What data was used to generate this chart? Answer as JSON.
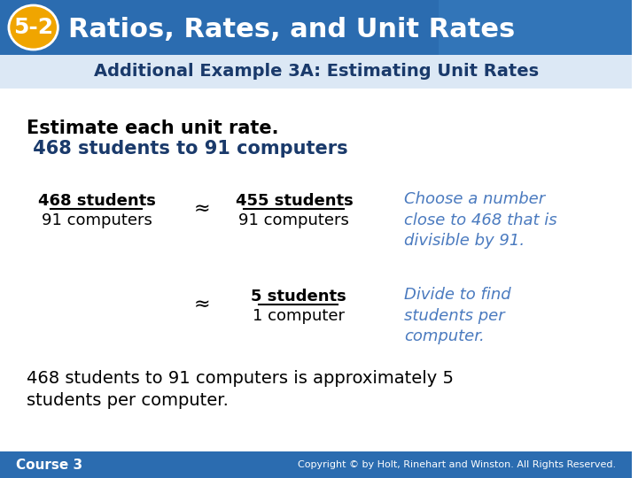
{
  "header_bg_color": "#2b6cb0",
  "header_text": "Ratios, Rates, and Unit Rates",
  "header_badge_text": "5-2",
  "header_badge_bg": "#f0a500",
  "subheader_text": "Additional Example 3A: Estimating Unit Rates",
  "subheader_color": "#1a3a6b",
  "body_bg": "#ffffff",
  "line1": "Estimate each unit rate.",
  "line2": " 468 students to 91 computers",
  "frac1_num": "468 students",
  "frac1_den": "91 computers",
  "approx_symbol": "≈",
  "frac2_num": "455 students",
  "frac2_den": "91 computers",
  "note1": "Choose a number\nclose to 468 that is\ndivisible by 91.",
  "frac3_num": "5 students",
  "frac3_den": "1 computer",
  "note2": "Divide to find\nstudents per\ncomputer.",
  "summary": "468 students to 91 computers is approximately 5\nstudents per computer.",
  "footer_left": "Course 3",
  "footer_right": "Copyright © by Holt, Rinehart and Winston. All Rights Reserved.",
  "footer_bg": "#2b6cb0",
  "note_color": "#4a7abf",
  "main_text_color": "#000000",
  "bold_line_color": "#1a3a6b"
}
